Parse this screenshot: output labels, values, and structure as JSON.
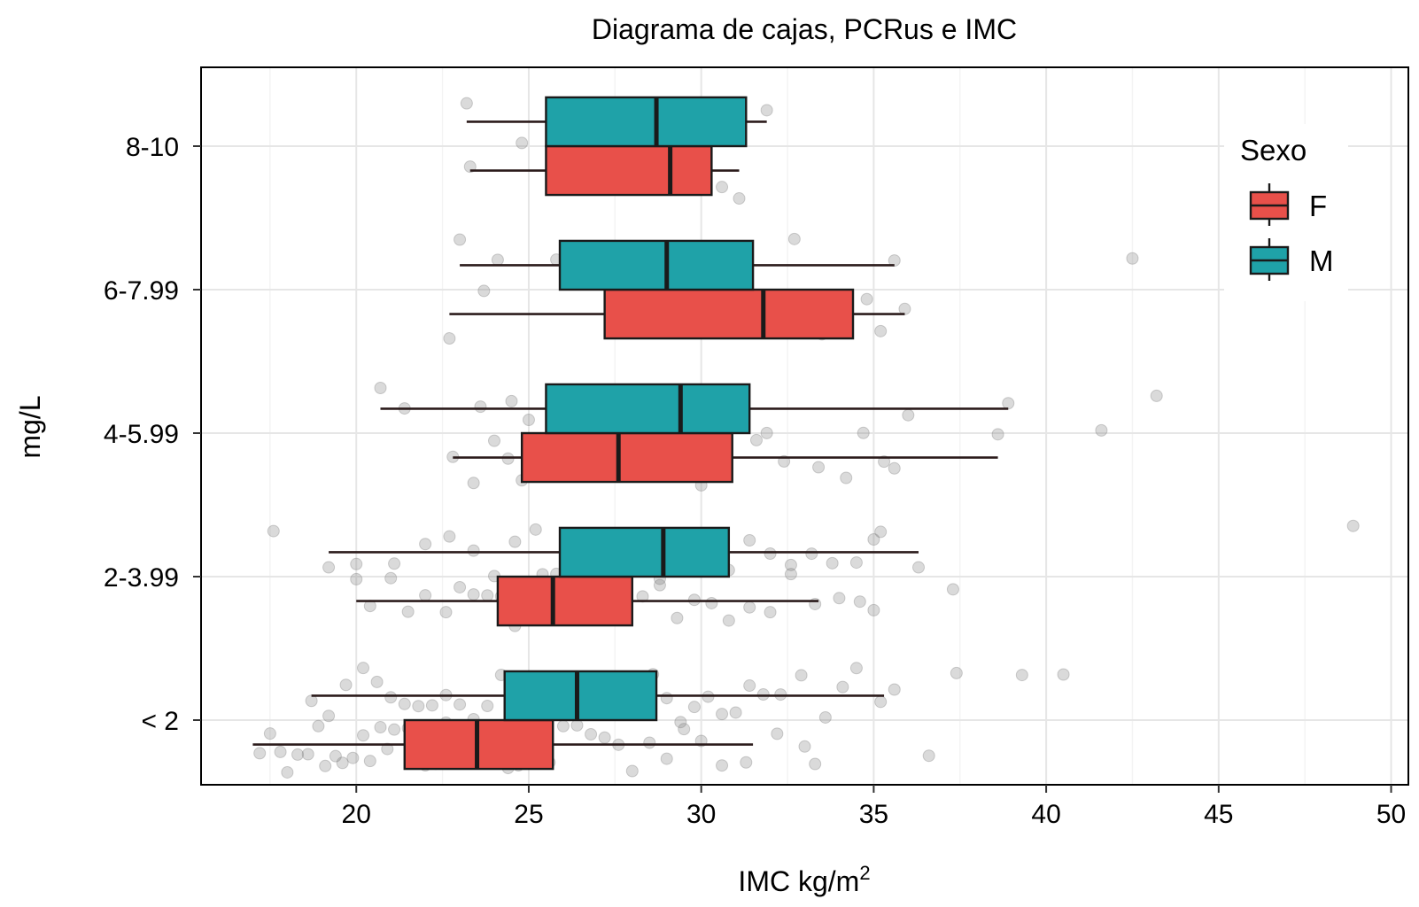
{
  "chart_data": {
    "type": "boxplot",
    "orientation": "horizontal",
    "title": "Diagrama de cajas, PCRus e IMC",
    "xlabel": "IMC kg/m",
    "xlabel_superscript": "2",
    "ylabel": "mg/L",
    "xlim": [
      15.5,
      50.5
    ],
    "x_ticks": [
      20,
      25,
      30,
      35,
      40,
      45,
      50
    ],
    "x_tick_labels": [
      "20",
      "25",
      "30",
      "35",
      "40",
      "45",
      "50"
    ],
    "categories": [
      "< 2",
      "2-3.99",
      "4-5.99",
      "6-7.99",
      "8-10"
    ],
    "legend": {
      "title": "Sexo",
      "position": "top-right",
      "entries": [
        {
          "label": "F",
          "color": "#e8504a"
        },
        {
          "label": "M",
          "color": "#1fa2a8"
        }
      ]
    },
    "series": [
      {
        "name": "F",
        "color": "#e8504a",
        "boxes": [
          {
            "category": "< 2",
            "whisker_low": 17.0,
            "q1": 21.4,
            "median": 23.5,
            "q3": 25.7,
            "whisker_high": 31.5,
            "points": [
              17.2,
              17.5,
              17.8,
              18.0,
              18.3,
              18.6,
              18.9,
              19.1,
              19.4,
              19.6,
              19.9,
              20.2,
              20.4,
              20.7,
              20.9,
              21.1,
              21.5,
              21.8,
              22.0,
              22.3,
              22.6,
              22.9,
              23.2,
              23.5,
              23.8,
              24.1,
              24.4,
              24.7,
              25.0,
              25.3,
              25.6,
              26.0,
              26.4,
              26.8,
              27.2,
              27.6,
              28.0,
              28.5,
              29.0,
              29.5,
              30.0,
              30.6,
              31.3,
              32.2,
              33.0,
              33.3,
              36.6
            ]
          },
          {
            "category": "2-3.99",
            "whisker_low": 20.0,
            "q1": 24.1,
            "median": 25.7,
            "q3": 28.0,
            "whisker_high": 33.4,
            "points": [
              20.0,
              20.4,
              21.0,
              21.5,
              22.0,
              22.6,
              23.0,
              23.4,
              23.8,
              24.2,
              24.6,
              25.0,
              25.4,
              25.8,
              26.2,
              26.6,
              27.0,
              27.4,
              27.8,
              28.3,
              28.8,
              29.3,
              29.8,
              30.3,
              30.8,
              31.4,
              32.0,
              32.6,
              33.3,
              34.0,
              34.6,
              35.0,
              37.3
            ]
          },
          {
            "category": "4-5.99",
            "whisker_low": 22.8,
            "q1": 24.8,
            "median": 27.6,
            "q3": 30.9,
            "whisker_high": 38.6,
            "points": [
              22.8,
              23.4,
              24.0,
              24.4,
              24.8,
              25.4,
              26.0,
              26.6,
              27.0,
              27.4,
              27.8,
              28.2,
              28.6,
              29.2,
              30.0,
              30.6,
              31.6,
              32.4,
              33.4,
              34.2,
              35.3,
              35.6,
              38.6
            ]
          },
          {
            "category": "6-7.99",
            "whisker_low": 22.7,
            "q1": 27.2,
            "median": 31.8,
            "q3": 34.4,
            "whisker_high": 35.9,
            "points": [
              22.7,
              23.7,
              27.5,
              28.5,
              31.0,
              32.0,
              33.5,
              34.8,
              35.2,
              35.9
            ]
          },
          {
            "category": "8-10",
            "whisker_low": 23.3,
            "q1": 25.5,
            "median": 29.1,
            "q3": 30.3,
            "whisker_high": 31.1,
            "points": [
              23.3,
              24.8,
              26.1,
              28.0,
              29.0,
              30.6,
              31.1
            ]
          }
        ]
      },
      {
        "name": "M",
        "color": "#1fa2a8",
        "boxes": [
          {
            "category": "< 2",
            "whisker_low": 18.7,
            "q1": 24.3,
            "median": 26.4,
            "q3": 28.7,
            "whisker_high": 35.3,
            "points": [
              18.7,
              19.2,
              19.7,
              20.2,
              20.6,
              21.0,
              21.4,
              21.8,
              22.2,
              22.6,
              23.0,
              23.4,
              23.8,
              24.2,
              24.6,
              25.0,
              25.4,
              25.8,
              26.2,
              26.6,
              27.0,
              27.4,
              27.8,
              28.2,
              28.6,
              29.0,
              29.4,
              29.8,
              30.2,
              30.6,
              31.0,
              31.4,
              31.8,
              32.3,
              32.9,
              33.6,
              34.1,
              34.5,
              35.2,
              35.6,
              37.4,
              39.3,
              40.5
            ]
          },
          {
            "category": "2-3.99",
            "whisker_low": 19.2,
            "q1": 25.9,
            "median": 28.9,
            "q3": 30.8,
            "whisker_high": 36.3,
            "points": [
              17.6,
              19.2,
              20.0,
              21.1,
              22.0,
              22.7,
              23.4,
              24.0,
              24.6,
              25.2,
              25.8,
              26.3,
              26.8,
              27.3,
              27.8,
              28.3,
              28.8,
              29.3,
              29.8,
              30.3,
              30.8,
              31.4,
              32.0,
              32.6,
              33.2,
              33.8,
              34.5,
              35.0,
              35.2,
              36.3,
              48.9
            ]
          },
          {
            "category": "4-5.99",
            "whisker_low": 20.7,
            "q1": 25.5,
            "median": 29.4,
            "q3": 31.4,
            "whisker_high": 38.9,
            "points": [
              20.7,
              21.4,
              23.6,
              24.5,
              25.0,
              26.4,
              27.2,
              27.8,
              28.4,
              29.0,
              30.0,
              30.8,
              31.9,
              34.7,
              36.0,
              38.9,
              41.6,
              43.2
            ]
          },
          {
            "category": "6-7.99",
            "whisker_low": 23.0,
            "q1": 25.9,
            "median": 29.0,
            "q3": 31.5,
            "whisker_high": 35.6,
            "points": [
              23.0,
              24.1,
              25.8,
              28.8,
              29.2,
              32.7,
              35.6,
              42.5
            ]
          },
          {
            "category": "8-10",
            "whisker_low": 23.2,
            "q1": 25.5,
            "median": 28.7,
            "q3": 31.3,
            "whisker_high": 31.9,
            "points": [
              23.2,
              26.3,
              31.9
            ]
          }
        ]
      }
    ]
  }
}
